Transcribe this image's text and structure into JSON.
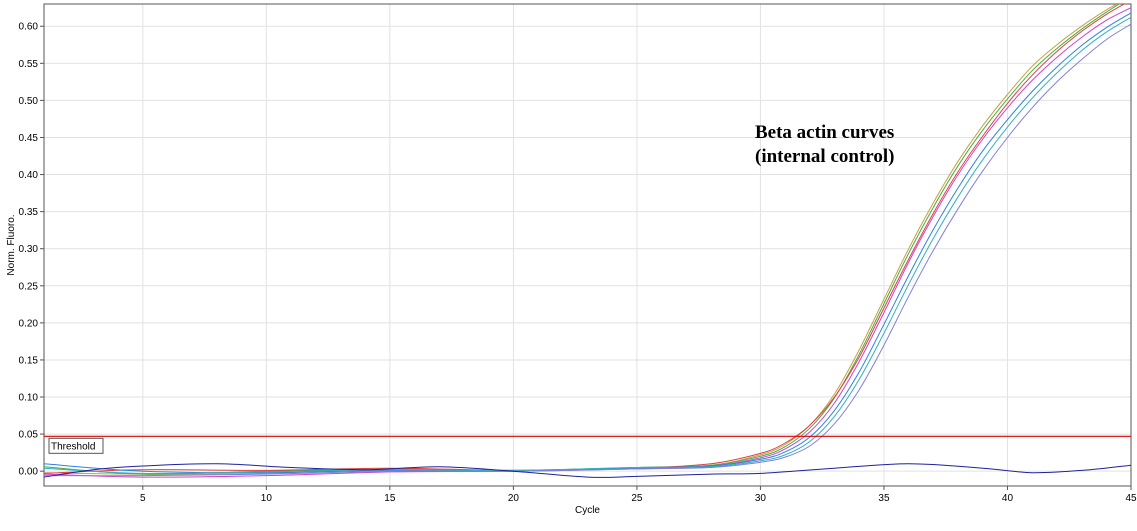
{
  "chart_data": {
    "type": "line",
    "xlabel": "Cycle",
    "ylabel": "Norm. Fluoro.",
    "xlim": [
      1,
      45
    ],
    "ylim": [
      -0.02,
      0.63
    ],
    "x_ticks": [
      5,
      10,
      15,
      20,
      25,
      30,
      35,
      40,
      45
    ],
    "y_ticks": [
      0.0,
      0.05,
      0.1,
      0.15,
      0.2,
      0.25,
      0.3,
      0.35,
      0.4,
      0.45,
      0.5,
      0.55,
      0.6
    ],
    "grid": true,
    "threshold": {
      "label": "Threshold",
      "value": 0.047,
      "color": "#dd0000"
    },
    "annotation": {
      "lines": [
        "Beta actin curves",
        "(internal control)"
      ]
    },
    "series": [
      {
        "color": "#c8a040",
        "points": [
          [
            1,
            -0.002
          ],
          [
            5,
            -0.004
          ],
          [
            10,
            -0.003
          ],
          [
            15,
            0.003
          ],
          [
            20,
            0.001
          ],
          [
            25,
            0.004
          ],
          [
            28,
            0.008
          ],
          [
            30,
            0.022
          ],
          [
            31,
            0.036
          ],
          [
            32,
            0.062
          ],
          [
            33,
            0.104
          ],
          [
            34,
            0.164
          ],
          [
            35,
            0.232
          ],
          [
            36,
            0.3
          ],
          [
            37,
            0.362
          ],
          [
            38,
            0.418
          ],
          [
            39,
            0.466
          ],
          [
            40,
            0.508
          ],
          [
            41,
            0.546
          ],
          [
            42,
            0.575
          ],
          [
            43,
            0.6
          ],
          [
            44,
            0.622
          ],
          [
            45,
            0.64
          ]
        ]
      },
      {
        "color": "#40b040",
        "points": [
          [
            1,
            0.006
          ],
          [
            5,
            -0.004
          ],
          [
            10,
            0.0
          ],
          [
            15,
            0.002
          ],
          [
            20,
            0.001
          ],
          [
            25,
            0.005
          ],
          [
            28,
            0.008
          ],
          [
            30,
            0.02
          ],
          [
            31,
            0.033
          ],
          [
            32,
            0.058
          ],
          [
            33,
            0.099
          ],
          [
            34,
            0.158
          ],
          [
            35,
            0.226
          ],
          [
            36,
            0.294
          ],
          [
            37,
            0.356
          ],
          [
            38,
            0.412
          ],
          [
            39,
            0.46
          ],
          [
            40,
            0.502
          ],
          [
            41,
            0.54
          ],
          [
            42,
            0.57
          ],
          [
            43,
            0.596
          ],
          [
            44,
            0.619
          ],
          [
            45,
            0.64
          ]
        ]
      },
      {
        "color": "#e04040",
        "points": [
          [
            1,
            -0.003
          ],
          [
            5,
            0.002
          ],
          [
            10,
            0.001
          ],
          [
            15,
            0.004
          ],
          [
            20,
            0.001
          ],
          [
            25,
            0.004
          ],
          [
            28,
            0.01
          ],
          [
            30,
            0.024
          ],
          [
            31,
            0.038
          ],
          [
            32,
            0.062
          ],
          [
            33,
            0.1
          ],
          [
            34,
            0.154
          ],
          [
            35,
            0.22
          ],
          [
            36,
            0.286
          ],
          [
            37,
            0.348
          ],
          [
            38,
            0.404
          ],
          [
            39,
            0.452
          ],
          [
            40,
            0.496
          ],
          [
            41,
            0.534
          ],
          [
            42,
            0.566
          ],
          [
            43,
            0.593
          ],
          [
            44,
            0.616
          ],
          [
            45,
            0.635
          ]
        ]
      },
      {
        "color": "#d040d0",
        "points": [
          [
            1,
            -0.004
          ],
          [
            5,
            -0.008
          ],
          [
            10,
            -0.006
          ],
          [
            15,
            -0.001
          ],
          [
            20,
            0.0
          ],
          [
            25,
            0.003
          ],
          [
            28,
            0.007
          ],
          [
            30,
            0.018
          ],
          [
            31,
            0.03
          ],
          [
            32,
            0.053
          ],
          [
            33,
            0.092
          ],
          [
            34,
            0.148
          ],
          [
            35,
            0.214
          ],
          [
            36,
            0.282
          ],
          [
            37,
            0.344
          ],
          [
            38,
            0.4
          ],
          [
            39,
            0.448
          ],
          [
            40,
            0.49
          ],
          [
            41,
            0.527
          ],
          [
            42,
            0.558
          ],
          [
            43,
            0.585
          ],
          [
            44,
            0.608
          ],
          [
            45,
            0.625
          ]
        ]
      },
      {
        "color": "#3080e0",
        "points": [
          [
            1,
            0.01
          ],
          [
            5,
            0.0
          ],
          [
            10,
            -0.002
          ],
          [
            15,
            0.001
          ],
          [
            20,
            0.0
          ],
          [
            25,
            0.004
          ],
          [
            28,
            0.007
          ],
          [
            30,
            0.016
          ],
          [
            31,
            0.026
          ],
          [
            32,
            0.046
          ],
          [
            33,
            0.082
          ],
          [
            34,
            0.134
          ],
          [
            35,
            0.198
          ],
          [
            36,
            0.264
          ],
          [
            37,
            0.326
          ],
          [
            38,
            0.382
          ],
          [
            39,
            0.432
          ],
          [
            40,
            0.474
          ],
          [
            41,
            0.512
          ],
          [
            42,
            0.545
          ],
          [
            43,
            0.574
          ],
          [
            44,
            0.598
          ],
          [
            45,
            0.618
          ]
        ]
      },
      {
        "color": "#30b0c0",
        "points": [
          [
            1,
            0.004
          ],
          [
            5,
            -0.003
          ],
          [
            10,
            -0.001
          ],
          [
            15,
            0.002
          ],
          [
            20,
            0.001
          ],
          [
            25,
            0.005
          ],
          [
            28,
            0.006
          ],
          [
            30,
            0.014
          ],
          [
            31,
            0.022
          ],
          [
            32,
            0.04
          ],
          [
            33,
            0.074
          ],
          [
            34,
            0.124
          ],
          [
            35,
            0.186
          ],
          [
            36,
            0.252
          ],
          [
            37,
            0.314
          ],
          [
            38,
            0.37
          ],
          [
            39,
            0.42
          ],
          [
            40,
            0.464
          ],
          [
            41,
            0.503
          ],
          [
            42,
            0.537
          ],
          [
            43,
            0.567
          ],
          [
            44,
            0.592
          ],
          [
            45,
            0.612
          ]
        ]
      },
      {
        "color": "#8080d8",
        "points": [
          [
            1,
            -0.006
          ],
          [
            5,
            -0.006
          ],
          [
            10,
            -0.004
          ],
          [
            15,
            0.0
          ],
          [
            20,
            0.0
          ],
          [
            25,
            0.003
          ],
          [
            28,
            0.005
          ],
          [
            30,
            0.012
          ],
          [
            31,
            0.019
          ],
          [
            32,
            0.034
          ],
          [
            33,
            0.064
          ],
          [
            34,
            0.11
          ],
          [
            35,
            0.17
          ],
          [
            36,
            0.236
          ],
          [
            37,
            0.298
          ],
          [
            38,
            0.354
          ],
          [
            39,
            0.405
          ],
          [
            40,
            0.45
          ],
          [
            41,
            0.49
          ],
          [
            42,
            0.525
          ],
          [
            43,
            0.555
          ],
          [
            44,
            0.582
          ],
          [
            45,
            0.603
          ]
        ]
      },
      {
        "color": "#2020a0",
        "points": [
          [
            1,
            -0.008
          ],
          [
            3,
            0.002
          ],
          [
            5,
            0.007
          ],
          [
            8,
            0.01
          ],
          [
            11,
            0.005
          ],
          [
            14,
            0.002
          ],
          [
            17,
            0.006
          ],
          [
            20,
            0.0
          ],
          [
            23,
            -0.008
          ],
          [
            25,
            -0.007
          ],
          [
            28,
            -0.004
          ],
          [
            30,
            -0.003
          ],
          [
            33,
            0.004
          ],
          [
            36,
            0.01
          ],
          [
            39,
            0.004
          ],
          [
            41,
            -0.002
          ],
          [
            43,
            0.001
          ],
          [
            45,
            0.008
          ]
        ]
      }
    ]
  }
}
